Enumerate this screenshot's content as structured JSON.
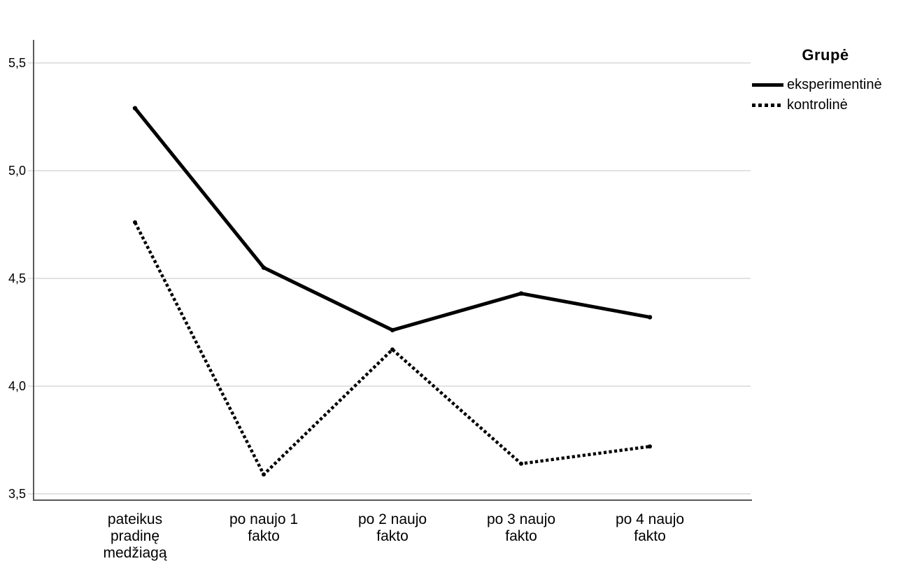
{
  "chart_data": {
    "type": "line",
    "title": "",
    "categories": [
      "pateikus pradinę medžiagą",
      "po naujo 1 fakto",
      "po 2 naujo fakto",
      "po 3 naujo fakto",
      "po 4 naujo fakto"
    ],
    "category_display_lines": [
      [
        "pateikus",
        "pradinę",
        "medžiagą"
      ],
      [
        "po naujo 1",
        "fakto"
      ],
      [
        "po 2 naujo",
        "fakto"
      ],
      [
        "po 3 naujo",
        "fakto"
      ],
      [
        "po 4 naujo",
        "fakto"
      ]
    ],
    "series": [
      {
        "name": "eksperimentinė",
        "style": "solid",
        "values": [
          5.29,
          4.55,
          4.26,
          4.43,
          4.32
        ]
      },
      {
        "name": "kontrolinė",
        "style": "dotted",
        "values": [
          4.76,
          3.59,
          4.17,
          3.64,
          3.72
        ]
      }
    ],
    "xlabel": "",
    "ylabel": "",
    "ylim": [
      3.5,
      5.5
    ],
    "yticks": [
      5.5,
      5.0,
      4.5,
      4.0,
      3.5
    ],
    "ytick_labels": [
      "5,5",
      "5,0",
      "4,5",
      "4,0",
      "3,5"
    ],
    "grid": "horizontal",
    "legend": {
      "title": "Grupė",
      "position": "top-right"
    },
    "colors": {
      "series_line": "#000000",
      "axis": "#595959",
      "gridline": "#d8d8d8",
      "text": "#000000",
      "background": "#ffffff"
    }
  }
}
